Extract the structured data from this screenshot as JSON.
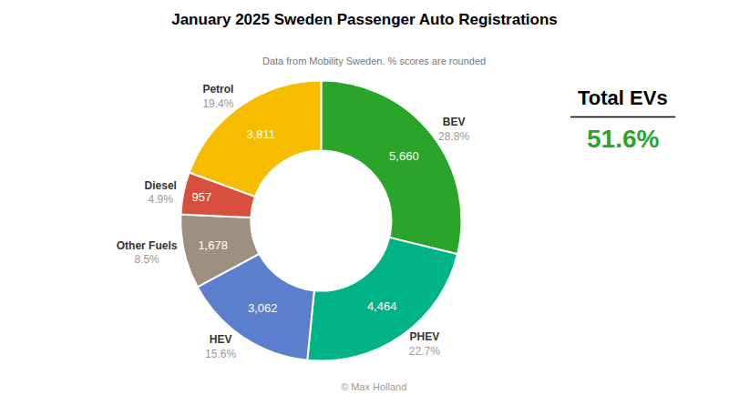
{
  "chart_data": {
    "type": "donut",
    "title": "January 2025 Sweden Passenger Auto Registrations",
    "subtitle": "Data from Mobility Sweden. % scores are rounded",
    "caption": "© Max Holland",
    "categories": [
      "BEV",
      "PHEV",
      "HEV",
      "Other Fuels",
      "Diesel",
      "Petrol"
    ],
    "values": [
      5660,
      4464,
      3062,
      1678,
      957,
      3811
    ],
    "value_labels": [
      "5,660",
      "4,464",
      "3,062",
      "1,678",
      "957",
      "3,811"
    ],
    "data_labels": true,
    "shares": [
      28.8,
      22.7,
      15.6,
      8.5,
      4.9,
      19.4
    ],
    "share_labels": [
      "28.8%",
      "22.7%",
      "15.6%",
      "8.5%",
      "4.9%",
      "19.4%"
    ],
    "colors": [
      "#2aa52a",
      "#00b386",
      "#5b7fcc",
      "#9e9080",
      "#d94f3d",
      "#f5bc00"
    ],
    "annotations": [
      {
        "text": "Total EVs"
      },
      {
        "text": "51.6%",
        "value": 51.6,
        "color": "#2aa52a"
      }
    ]
  }
}
